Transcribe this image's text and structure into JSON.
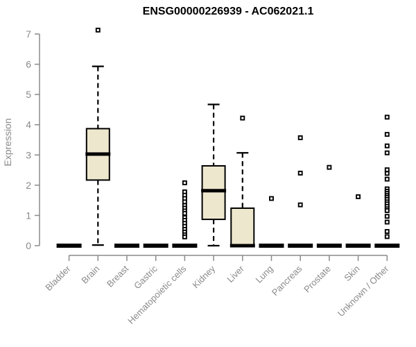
{
  "title": "ENSG00000226939 - AC062021.1",
  "chart_data": {
    "type": "boxplot",
    "title": "ENSG00000226939 - AC062021.1",
    "xlabel": "",
    "ylabel": "Expression",
    "ylim": [
      0,
      7
    ],
    "yticks": [
      0,
      1,
      2,
      3,
      4,
      5,
      6,
      7
    ],
    "grid": false,
    "legend": null,
    "colors": {
      "box_fill": "#EDE7CE",
      "box_stroke": "#000000",
      "median": "#000000",
      "whisker": "#000000",
      "outlier": "#000000",
      "axis": "#8a8a8a",
      "tick_label": "#8a8a8a",
      "title": "#000000"
    },
    "categories": [
      "Bladder",
      "Brain",
      "Breast",
      "Gastric",
      "Hematopoietic cells",
      "Kidney",
      "Liver",
      "Lung",
      "Pancreas",
      "Prostate",
      "Skin",
      "Unknown / Other"
    ],
    "boxes": [
      {
        "category": "Bladder",
        "low": 0,
        "q1": 0,
        "median": 0,
        "q3": 0,
        "high": 0,
        "outliers": []
      },
      {
        "category": "Brain",
        "low": 0.02,
        "q1": 2.17,
        "median": 3.03,
        "q3": 3.87,
        "high": 5.93,
        "outliers": [
          7.13
        ]
      },
      {
        "category": "Breast",
        "low": 0,
        "q1": 0,
        "median": 0,
        "q3": 0,
        "high": 0,
        "outliers": []
      },
      {
        "category": "Gastric",
        "low": 0,
        "q1": 0,
        "median": 0,
        "q3": 0,
        "high": 0,
        "outliers": []
      },
      {
        "category": "Hematopoietic cells",
        "low": 0,
        "q1": 0,
        "median": 0,
        "q3": 0,
        "high": 0,
        "outliers": [
          2.08,
          1.78,
          1.67,
          1.56,
          1.45,
          1.33,
          1.24,
          1.15,
          1.07,
          0.93,
          0.84,
          0.74,
          0.64,
          0.54,
          0.45,
          0.36,
          0.29
        ]
      },
      {
        "category": "Kidney",
        "low": 0,
        "q1": 0.87,
        "median": 1.82,
        "q3": 2.64,
        "high": 4.67,
        "outliers": []
      },
      {
        "category": "Liver",
        "low": 0,
        "q1": 0,
        "median": 0,
        "q3": 1.24,
        "high": 3.07,
        "outliers": [
          4.22
        ]
      },
      {
        "category": "Lung",
        "low": 0,
        "q1": 0,
        "median": 0,
        "q3": 0,
        "high": 0,
        "outliers": [
          1.56
        ]
      },
      {
        "category": "Pancreas",
        "low": 0,
        "q1": 0,
        "median": 0,
        "q3": 0,
        "high": 0,
        "outliers": [
          3.57,
          2.4,
          1.35
        ]
      },
      {
        "category": "Prostate",
        "low": 0,
        "q1": 0,
        "median": 0,
        "q3": 0,
        "high": 0,
        "outliers": [
          2.59
        ]
      },
      {
        "category": "Skin",
        "low": 0,
        "q1": 0,
        "median": 0,
        "q3": 0,
        "high": 0,
        "outliers": [
          1.62
        ]
      },
      {
        "category": "Unknown / Other",
        "low": 0,
        "q1": 0,
        "median": 0,
        "q3": 0,
        "high": 0,
        "outliers": [
          4.25,
          3.68,
          3.3,
          3.07,
          2.51,
          2.39,
          2.2,
          1.88,
          1.8,
          1.73,
          1.66,
          1.6,
          1.53,
          1.45,
          1.38,
          1.3,
          1.22,
          1.16,
          0.97,
          0.78,
          0.47,
          0.3
        ]
      }
    ]
  }
}
